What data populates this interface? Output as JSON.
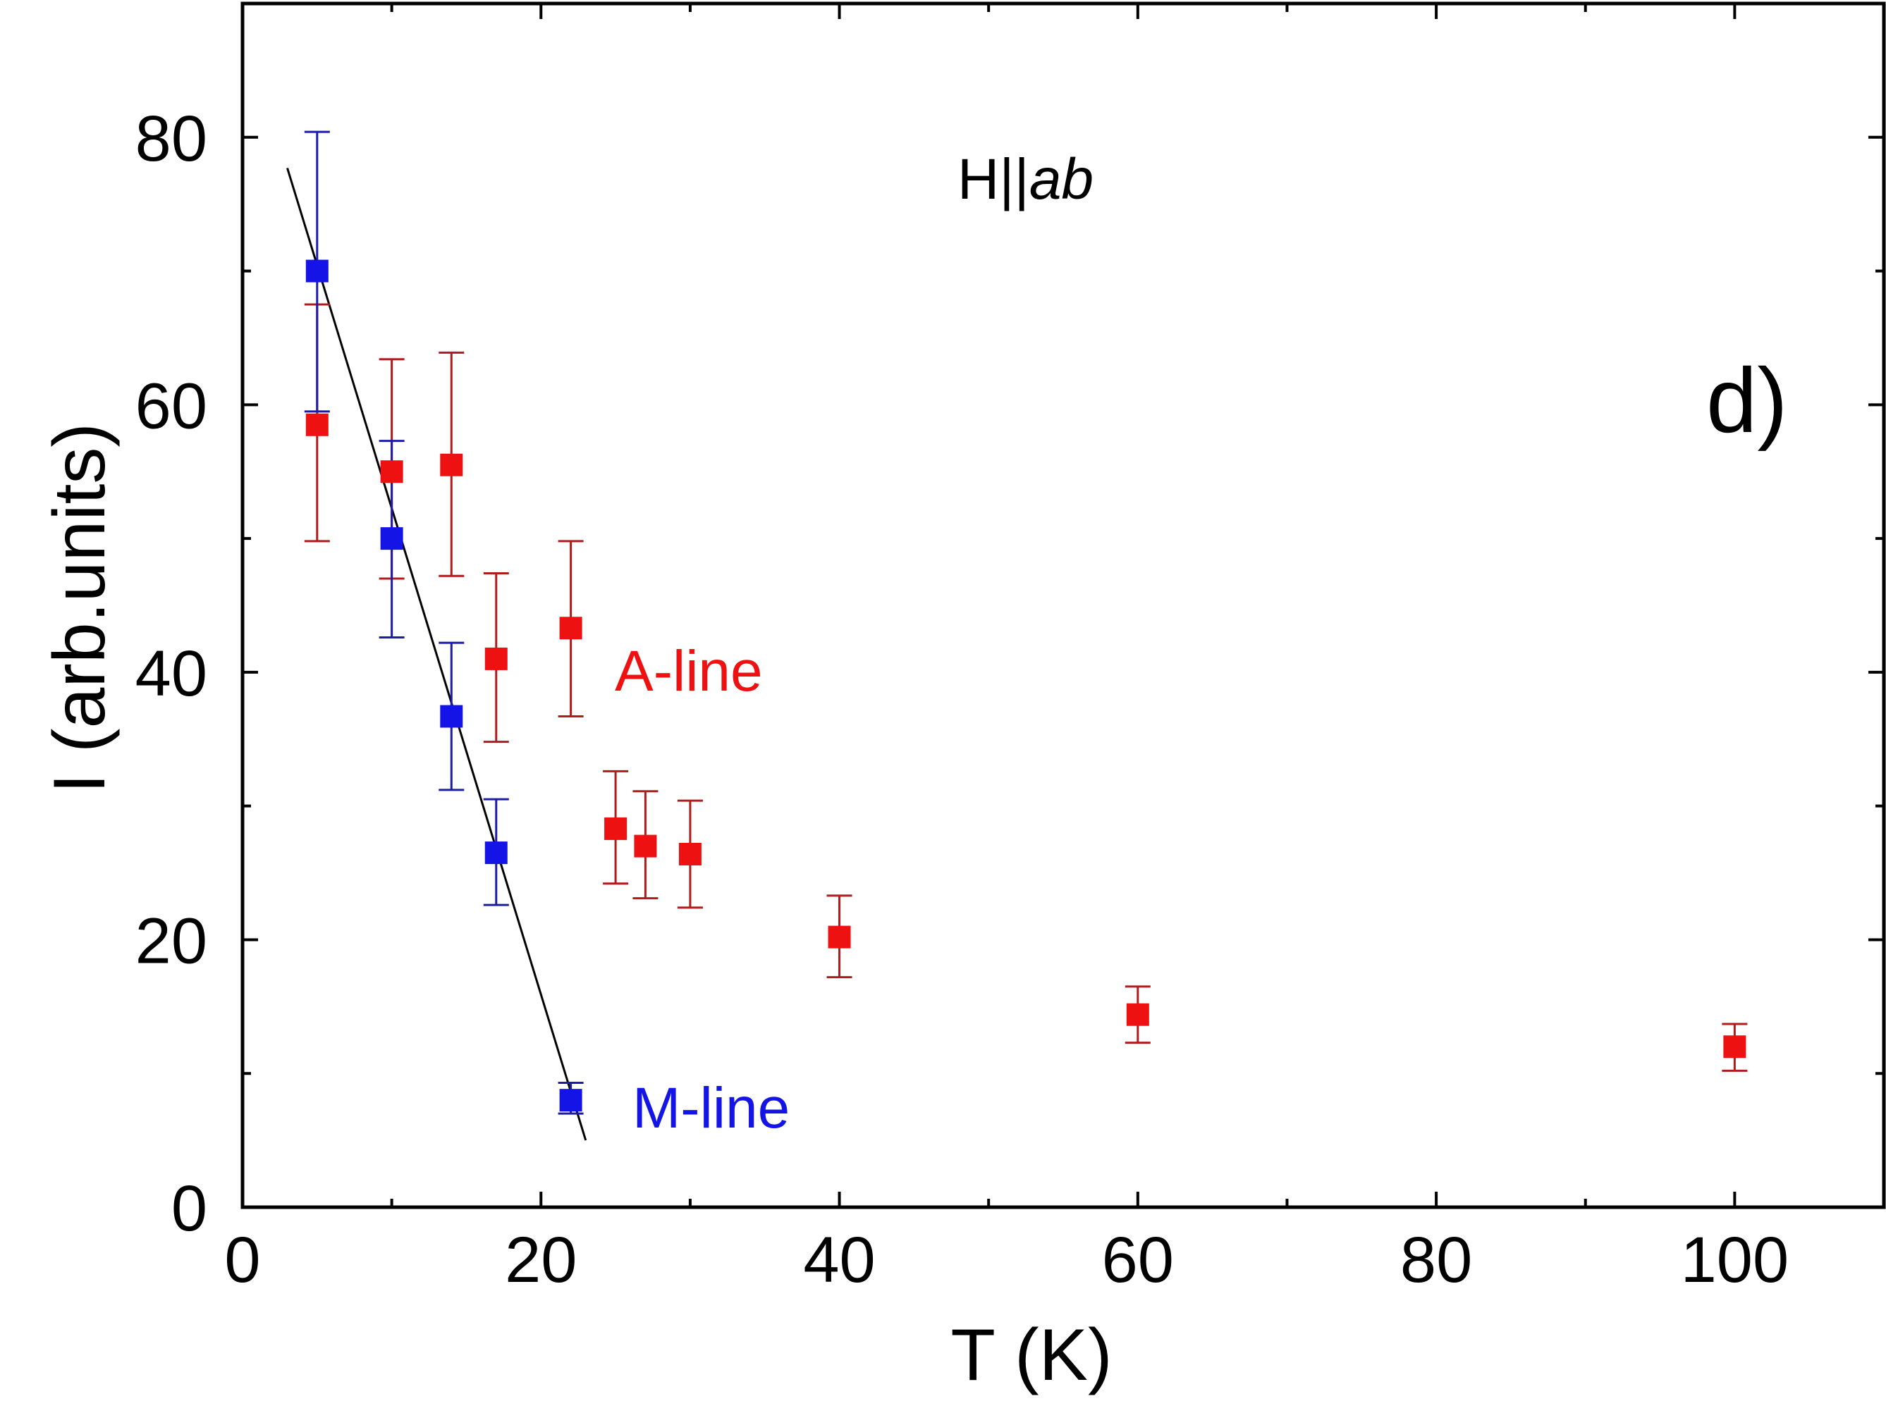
{
  "chart_data": {
    "type": "scatter",
    "title": "",
    "xlabel": "T (K)",
    "ylabel": "I (arb.units)",
    "xlim": [
      0,
      110
    ],
    "ylim": [
      0,
      90
    ],
    "xticks": [
      0,
      20,
      40,
      60,
      80,
      100
    ],
    "yticks": [
      0,
      20,
      40,
      60,
      80
    ],
    "x_minor_step": 10,
    "y_minor_step": 10,
    "grid": false,
    "field_label": {
      "prefix": "H||",
      "suffix": "ab"
    },
    "panel_label": "d)",
    "series": [
      {
        "name": "A-line",
        "label": "A-line",
        "color": "#ee1111",
        "errorbar_color": "#b01c1c",
        "x": [
          5,
          10,
          14,
          17,
          22,
          25,
          27,
          30,
          40,
          60,
          100
        ],
        "y": [
          58.5,
          55,
          55.5,
          41,
          43.3,
          28.3,
          27,
          26.4,
          20.2,
          14.4,
          12
        ],
        "yerr_low": [
          49.8,
          47.0,
          47.2,
          34.8,
          36.7,
          24.2,
          23.1,
          22.4,
          17.2,
          12.3,
          10.2
        ],
        "yerr_high": [
          67.5,
          63.4,
          63.9,
          47.4,
          49.8,
          32.6,
          31.1,
          30.4,
          23.3,
          16.5,
          13.7
        ]
      },
      {
        "name": "M-line",
        "label": "M-line",
        "color": "#1414e6",
        "errorbar_color": "#1c1ca8",
        "x": [
          5,
          10,
          14,
          17,
          22
        ],
        "y": [
          70,
          50,
          36.7,
          26.5,
          8
        ],
        "yerr_low": [
          59.5,
          42.6,
          31.2,
          22.6,
          7.0
        ],
        "yerr_high": [
          80.4,
          57.3,
          42.2,
          30.5,
          9.3
        ]
      }
    ],
    "fit_line": {
      "x": [
        3,
        23
      ],
      "y": [
        77.7,
        5
      ],
      "color": "#000000"
    }
  }
}
